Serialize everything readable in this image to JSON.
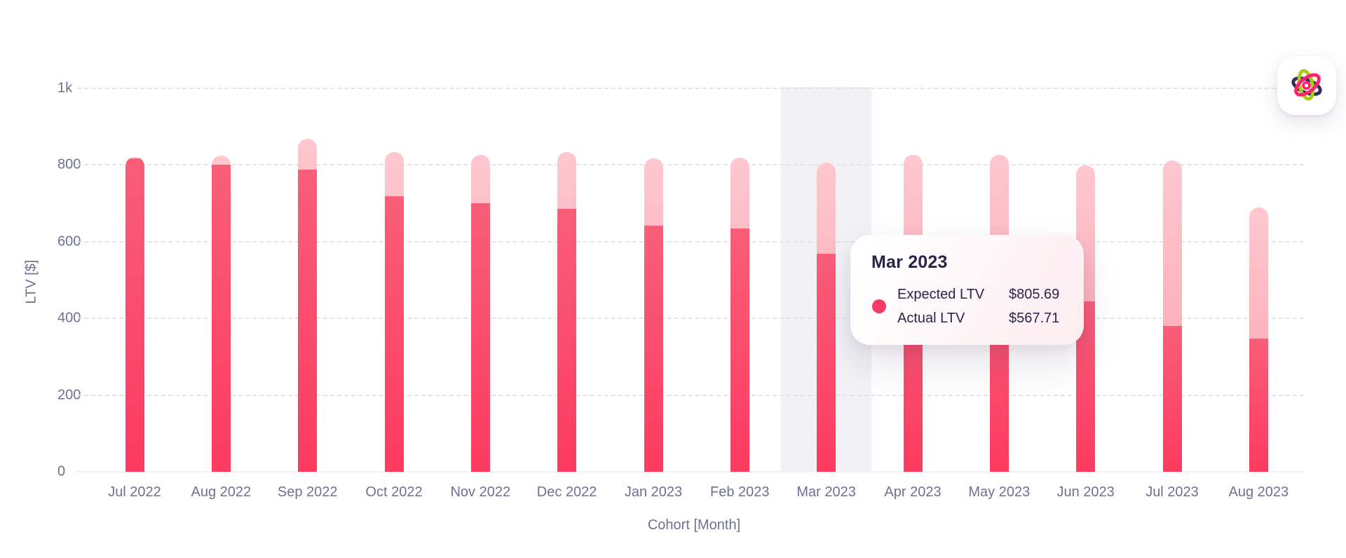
{
  "header": {
    "logo_name": "atom-logo"
  },
  "chart_data": {
    "type": "bar",
    "title": "",
    "xlabel": "Cohort [Month]",
    "ylabel": "LTV [$]",
    "categories": [
      "Jul 2022",
      "Aug 2022",
      "Sep 2022",
      "Oct 2022",
      "Nov 2022",
      "Dec 2022",
      "Jan 2023",
      "Feb 2023",
      "Mar 2023",
      "Apr 2023",
      "May 2023",
      "Jun 2023",
      "Jul 2023",
      "Aug 2023"
    ],
    "series": [
      {
        "name": "Expected LTV",
        "role": "full-bar-light",
        "values": [
          821,
          824,
          868,
          833,
          826,
          833,
          818,
          820,
          805.69,
          826,
          827,
          799,
          812,
          690
        ]
      },
      {
        "name": "Actual LTV",
        "role": "bottom-overlay-dark",
        "values": [
          817,
          801,
          787,
          719,
          701,
          685,
          641,
          634,
          567.71,
          535,
          505,
          445,
          381,
          348
        ]
      }
    ],
    "ylim": [
      0,
      1000
    ],
    "yticks": [
      {
        "value": 0,
        "label": "0"
      },
      {
        "value": 200,
        "label": "200"
      },
      {
        "value": 400,
        "label": "400"
      },
      {
        "value": 600,
        "label": "600"
      },
      {
        "value": 800,
        "label": "800"
      },
      {
        "value": 1000,
        "label": "1k"
      }
    ],
    "grid": "horizontal-dashed",
    "legend": "none",
    "highlighted_category": "Mar 2023",
    "colors": {
      "expected_bar_top": "#ffc7ce",
      "expected_bar_bottom": "#f99fac",
      "actual_bar_top": "#f95e79",
      "actual_bar_bottom": "#fd3a60",
      "highlight_band": "#f2f2f6",
      "axis_text": "#6e7191"
    }
  },
  "tooltip": {
    "title": "Mar 2023",
    "rows": [
      {
        "label": "Expected LTV",
        "value": "$805.69"
      },
      {
        "label": "Actual LTV",
        "value": "$567.71"
      }
    ],
    "dot_color": "#f93a66"
  }
}
